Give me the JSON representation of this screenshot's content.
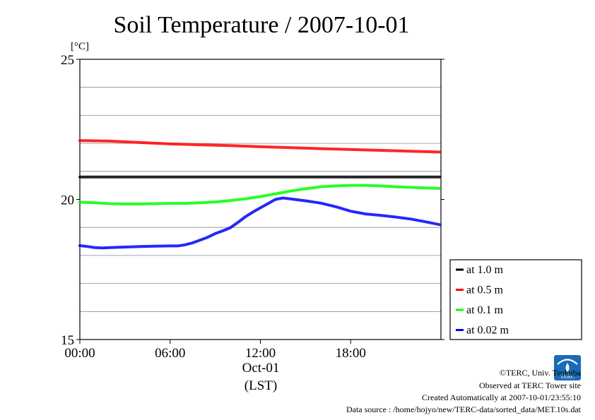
{
  "chart_data": {
    "type": "line",
    "title": "Soil Temperature / 2007-10-01",
    "y_unit": "[°C]",
    "ylim": [
      15,
      25
    ],
    "y_ticks": [
      {
        "value": 15,
        "label": "15"
      },
      {
        "value": 20,
        "label": "20"
      },
      {
        "value": 25,
        "label": "25"
      }
    ],
    "y_gridlines": [
      16,
      17,
      18,
      19,
      21,
      22,
      23,
      24
    ],
    "xlim": [
      0,
      24
    ],
    "x_ticks": [
      {
        "value": 0,
        "label": "00:00"
      },
      {
        "value": 6,
        "label": "06:00"
      },
      {
        "value": 12,
        "label": "12:00"
      },
      {
        "value": 18,
        "label": "18:00"
      }
    ],
    "x_date_label": "Oct-01",
    "x_axis_label": "(LST)",
    "grid": true,
    "legend_position": "right",
    "series": [
      {
        "name": "at 1.0 m",
        "color": "#000000",
        "points": [
          [
            0,
            20.8
          ],
          [
            3,
            20.8
          ],
          [
            6,
            20.8
          ],
          [
            9,
            20.8
          ],
          [
            12,
            20.8
          ],
          [
            15,
            20.8
          ],
          [
            18,
            20.8
          ],
          [
            21,
            20.8
          ],
          [
            23.9,
            20.8
          ]
        ]
      },
      {
        "name": "at 0.5 m",
        "color": "#ff0000",
        "points": [
          [
            0,
            22.1
          ],
          [
            2,
            22.08
          ],
          [
            4,
            22.03
          ],
          [
            6,
            21.98
          ],
          [
            8,
            21.95
          ],
          [
            10,
            21.92
          ],
          [
            12,
            21.88
          ],
          [
            14,
            21.85
          ],
          [
            16,
            21.81
          ],
          [
            18,
            21.78
          ],
          [
            20,
            21.75
          ],
          [
            22,
            21.72
          ],
          [
            23.9,
            21.69
          ]
        ]
      },
      {
        "name": "at 0.1 m",
        "color": "#00ff00",
        "points": [
          [
            0,
            19.9
          ],
          [
            1,
            19.88
          ],
          [
            2,
            19.85
          ],
          [
            3,
            19.84
          ],
          [
            4,
            19.84
          ],
          [
            5,
            19.85
          ],
          [
            6,
            19.86
          ],
          [
            7,
            19.86
          ],
          [
            8,
            19.88
          ],
          [
            9,
            19.91
          ],
          [
            10,
            19.96
          ],
          [
            11,
            20.02
          ],
          [
            12,
            20.1
          ],
          [
            13,
            20.2
          ],
          [
            14,
            20.3
          ],
          [
            15,
            20.38
          ],
          [
            16,
            20.45
          ],
          [
            17,
            20.48
          ],
          [
            18,
            20.5
          ],
          [
            19,
            20.5
          ],
          [
            20,
            20.48
          ],
          [
            21,
            20.45
          ],
          [
            22,
            20.43
          ],
          [
            23,
            20.41
          ],
          [
            23.9,
            20.39
          ]
        ]
      },
      {
        "name": "at 0.02 m",
        "color": "#0000ff",
        "points": [
          [
            0,
            18.35
          ],
          [
            0.5,
            18.32
          ],
          [
            1,
            18.28
          ],
          [
            1.5,
            18.27
          ],
          [
            2,
            18.28
          ],
          [
            3,
            18.3
          ],
          [
            4,
            18.32
          ],
          [
            5,
            18.33
          ],
          [
            6,
            18.34
          ],
          [
            6.5,
            18.34
          ],
          [
            7,
            18.38
          ],
          [
            7.5,
            18.45
          ],
          [
            8,
            18.55
          ],
          [
            8.5,
            18.65
          ],
          [
            9,
            18.78
          ],
          [
            9.5,
            18.88
          ],
          [
            10,
            18.99
          ],
          [
            10.5,
            19.18
          ],
          [
            11,
            19.38
          ],
          [
            11.5,
            19.55
          ],
          [
            12,
            19.7
          ],
          [
            12.5,
            19.85
          ],
          [
            13,
            20.0
          ],
          [
            13.5,
            20.05
          ],
          [
            14,
            20.02
          ],
          [
            15,
            19.95
          ],
          [
            16,
            19.87
          ],
          [
            17,
            19.74
          ],
          [
            18,
            19.58
          ],
          [
            19,
            19.48
          ],
          [
            20,
            19.43
          ],
          [
            21,
            19.37
          ],
          [
            22,
            19.3
          ],
          [
            23,
            19.2
          ],
          [
            23.9,
            19.1
          ]
        ]
      }
    ]
  },
  "footer": {
    "logo_text": "TERC",
    "copyright": "©TERC, Univ. Tsukuba",
    "observed": "Observed at TERC Tower site",
    "created": "Created Automatically at 2007-10-01/23:55:10",
    "source": "Data source : /home/hojyo/new/TERC-data/sorted_data/MET.10s.dat"
  }
}
